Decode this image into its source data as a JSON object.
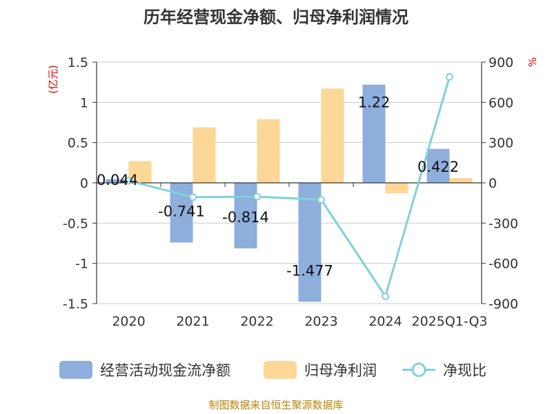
{
  "chart_data": {
    "type": "bar",
    "title": "历年经营现金净额、归母净利润情况",
    "categories": [
      "2020",
      "2021",
      "2022",
      "2023",
      "2024",
      "2025Q1-Q3"
    ],
    "left_axis": {
      "unit": "(亿元)",
      "ylim": [
        -1.5,
        1.5
      ],
      "ticks": [
        "1.5",
        "1",
        "0.5",
        "0",
        "-0.5",
        "-1",
        "-1.5"
      ]
    },
    "right_axis": {
      "unit": "%",
      "ylim": [
        -900,
        900
      ],
      "ticks": [
        "900",
        "600",
        "300",
        "0",
        "-300",
        "-600",
        "-900"
      ]
    },
    "series": [
      {
        "name": "经营活动现金流净额",
        "kind": "bar",
        "axis": "left",
        "color": "#8eaedb",
        "values": [
          0.044,
          -0.741,
          -0.814,
          -1.477,
          1.22,
          0.422
        ],
        "labels": [
          "0.044",
          "-0.741",
          "-0.814",
          "-1.477",
          "1.22",
          "0.422"
        ]
      },
      {
        "name": "归母净利润",
        "kind": "bar",
        "axis": "left",
        "color": "#fdd795",
        "values": [
          0.27,
          0.69,
          0.79,
          1.17,
          -0.13,
          0.06
        ]
      },
      {
        "name": "净现比",
        "kind": "line",
        "axis": "right",
        "color": "#7fd2d8",
        "values": [
          16,
          -107,
          -103,
          -126,
          -845,
          790
        ]
      }
    ],
    "source": "制图数据来自恒生聚源数据库"
  }
}
